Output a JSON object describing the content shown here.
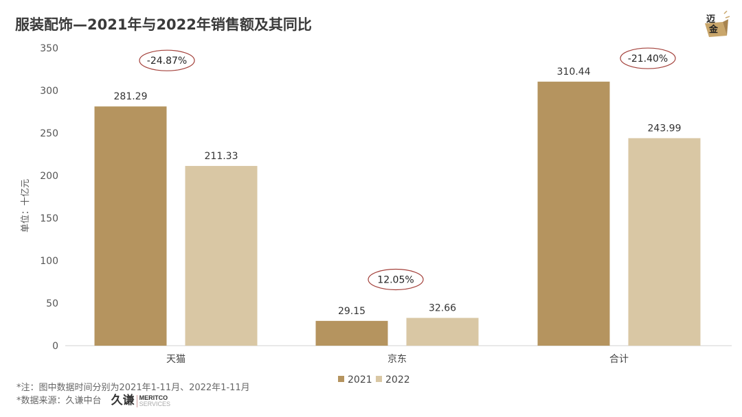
{
  "title": "服装配饰—2021年与2022年销售额及其同比",
  "logo_text": "迈金",
  "notes": {
    "note": "*注：图中数据时间分别为2021年1-11月、2022年1-11月",
    "source": "*数据来源：久谦中台",
    "brand_zh": "久谦",
    "brand_en1": "MERITCO",
    "brand_en2": "SERVICES"
  },
  "chart_data": {
    "type": "bar",
    "categories": [
      "天猫",
      "京东",
      "合计"
    ],
    "series": [
      {
        "name": "2021",
        "values": [
          281.29,
          29.15,
          310.44
        ],
        "color": "#b5945f"
      },
      {
        "name": "2022",
        "values": [
          211.33,
          32.66,
          243.99
        ],
        "color": "#d9c7a4"
      }
    ],
    "yoy": [
      "-24.87%",
      "12.05%",
      "-21.40%"
    ],
    "ylabel": "单位：十亿元",
    "ylim": [
      0,
      350
    ],
    "yticks": [
      0,
      50,
      100,
      150,
      200,
      250,
      300,
      350
    ],
    "grid": false,
    "legend": "bottom",
    "annotation_color": "#a3403a"
  }
}
